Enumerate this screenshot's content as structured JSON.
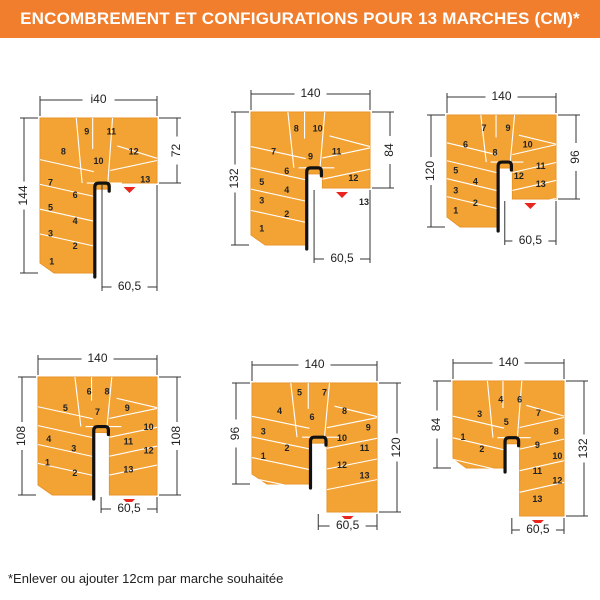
{
  "header": {
    "title": "ENCOMBREMENT ET CONFIGURATIONS POUR 13 MARCHES (CM)*"
  },
  "footnote": "*Enlever ou ajouter 12cm par marche souhaitée",
  "colors": {
    "banner": "#f07e2c",
    "stair": "#f3a334",
    "line": "#ffffff",
    "post": "#111111",
    "marker": "#e8261d",
    "dim": "#333333"
  },
  "configs": [
    {
      "width": "i40",
      "height": "144",
      "right": "72",
      "landing": "60,5",
      "steps": [
        "1",
        "2",
        "3",
        "4",
        "5",
        "6",
        "7",
        "8",
        "9",
        "10",
        "11",
        "12",
        "13"
      ]
    },
    {
      "width": "140",
      "height": "132",
      "right": "84",
      "landing": "60,5",
      "steps": [
        "1",
        "2",
        "3",
        "4",
        "5",
        "6",
        "7",
        "8",
        "9",
        "10",
        "11",
        "12",
        "13"
      ]
    },
    {
      "width": "140",
      "height": "120",
      "right": "96",
      "landing": "60,5",
      "steps": [
        "1",
        "2",
        "3",
        "4",
        "5",
        "6",
        "7",
        "8",
        "9",
        "10",
        "11",
        "12",
        "13"
      ]
    },
    {
      "width": "140",
      "height": "108",
      "right": "108",
      "landing": "60,5",
      "steps": [
        "1",
        "2",
        "3",
        "4",
        "5",
        "6",
        "7",
        "8",
        "9",
        "10",
        "11",
        "12",
        "13"
      ]
    },
    {
      "width": "140",
      "height": "96",
      "right": "120",
      "landing": "60,5",
      "steps": [
        "1",
        "2",
        "3",
        "4",
        "5",
        "6",
        "7",
        "8",
        "9",
        "10",
        "11",
        "12",
        "13"
      ]
    },
    {
      "width": "140",
      "height": "84",
      "right": "132",
      "landing": "60,5",
      "steps": [
        "1",
        "2",
        "3",
        "4",
        "5",
        "6",
        "7",
        "8",
        "9",
        "10",
        "11",
        "12",
        "13"
      ]
    }
  ]
}
